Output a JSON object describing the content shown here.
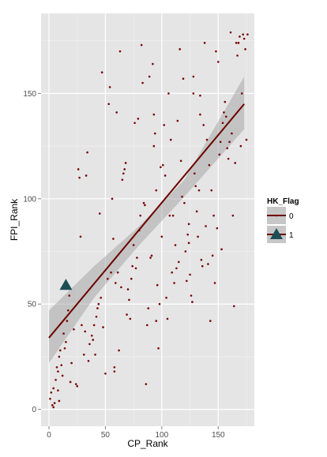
{
  "chart_data": {
    "type": "scatter",
    "xlabel": "CP_Rank",
    "ylabel": "FPI_Rank",
    "xlim": [
      -7,
      182
    ],
    "ylim": [
      -8,
      188
    ],
    "x_ticks": [
      0,
      50,
      100,
      150
    ],
    "y_ticks": [
      0,
      50,
      100,
      150
    ],
    "grid": true,
    "legend": {
      "title": "HK_Flag",
      "position": "right",
      "entries": [
        {
          "label": "0",
          "shape": "point",
          "color": "#7a0000"
        },
        {
          "label": "1",
          "shape": "triangle",
          "color": "#1e4e55"
        }
      ]
    },
    "series": [
      {
        "name": "0",
        "color": "#7a0000",
        "points": [
          [
            1,
            5
          ],
          [
            2,
            8
          ],
          [
            3,
            2
          ],
          [
            4,
            10
          ],
          [
            4,
            1
          ],
          [
            5,
            3
          ],
          [
            6,
            14
          ],
          [
            7,
            20
          ],
          [
            8,
            18
          ],
          [
            8,
            9
          ],
          [
            9,
            25
          ],
          [
            9,
            4
          ],
          [
            10,
            28
          ],
          [
            11,
            21
          ],
          [
            12,
            16
          ],
          [
            13,
            36
          ],
          [
            14,
            29
          ],
          [
            15,
            32
          ],
          [
            16,
            42
          ],
          [
            17,
            47
          ],
          [
            18,
            54
          ],
          [
            19,
            13
          ],
          [
            20,
            22
          ],
          [
            22,
            38
          ],
          [
            24,
            12
          ],
          [
            25,
            11
          ],
          [
            26,
            114
          ],
          [
            27,
            110
          ],
          [
            28,
            82
          ],
          [
            29,
            40
          ],
          [
            31,
            26
          ],
          [
            32,
            37
          ],
          [
            33,
            111
          ],
          [
            34,
            122
          ],
          [
            35,
            23
          ],
          [
            36,
            31
          ],
          [
            38,
            35
          ],
          [
            39,
            33
          ],
          [
            40,
            40
          ],
          [
            41,
            26
          ],
          [
            42,
            44
          ],
          [
            43,
            48
          ],
          [
            44,
            50
          ],
          [
            45,
            93
          ],
          [
            46,
            53
          ],
          [
            47,
            160
          ],
          [
            48,
            39
          ],
          [
            50,
            17
          ],
          [
            52,
            62
          ],
          [
            53,
            145
          ],
          [
            54,
            153
          ],
          [
            55,
            65
          ],
          [
            56,
            100
          ],
          [
            57,
            81
          ],
          [
            58,
            20
          ],
          [
            58,
            18
          ],
          [
            59,
            60
          ],
          [
            60,
            141
          ],
          [
            61,
            65
          ],
          [
            62,
            28
          ],
          [
            63,
            170
          ],
          [
            64,
            58
          ],
          [
            65,
            109
          ],
          [
            66,
            112
          ],
          [
            67,
            114
          ],
          [
            68,
            117
          ],
          [
            69,
            45
          ],
          [
            70,
            57
          ],
          [
            71,
            52
          ],
          [
            72,
            43
          ],
          [
            73,
            62
          ],
          [
            74,
            68
          ],
          [
            75,
            78
          ],
          [
            76,
            136
          ],
          [
            77,
            67
          ],
          [
            78,
            72
          ],
          [
            79,
            138
          ],
          [
            80,
            85
          ],
          [
            81,
            92
          ],
          [
            82,
            173
          ],
          [
            83,
            155
          ],
          [
            84,
            98
          ],
          [
            85,
            97
          ],
          [
            86,
            12
          ],
          [
            87,
            40
          ],
          [
            88,
            48
          ],
          [
            89,
            158
          ],
          [
            90,
            72
          ],
          [
            91,
            73
          ],
          [
            92,
            164
          ],
          [
            93,
            140
          ],
          [
            93,
            125
          ],
          [
            94,
            131
          ],
          [
            95,
            104
          ],
          [
            95,
            42
          ],
          [
            96,
            59
          ],
          [
            97,
            29
          ],
          [
            98,
            50
          ],
          [
            99,
            115
          ],
          [
            100,
            82
          ],
          [
            101,
            116
          ],
          [
            102,
            135
          ],
          [
            103,
            111
          ],
          [
            104,
            53
          ],
          [
            105,
            43
          ],
          [
            106,
            150
          ],
          [
            107,
            92
          ],
          [
            108,
            128
          ],
          [
            109,
            65
          ],
          [
            110,
            92
          ],
          [
            111,
            60
          ],
          [
            112,
            78
          ],
          [
            113,
            67
          ],
          [
            114,
            137
          ],
          [
            115,
            70
          ],
          [
            116,
            171
          ],
          [
            117,
            118
          ],
          [
            118,
            101
          ],
          [
            119,
            157
          ],
          [
            120,
            98
          ],
          [
            121,
            75
          ],
          [
            122,
            61
          ],
          [
            123,
            83
          ],
          [
            124,
            79
          ],
          [
            124,
            88
          ],
          [
            125,
            64
          ],
          [
            126,
            54
          ],
          [
            127,
            51
          ],
          [
            128,
            150
          ],
          [
            128,
            158
          ],
          [
            129,
            112
          ],
          [
            130,
            106
          ],
          [
            131,
            94
          ],
          [
            132,
            82
          ],
          [
            133,
            104
          ],
          [
            134,
            140
          ],
          [
            134,
            149
          ],
          [
            135,
            71
          ],
          [
            136,
            68
          ],
          [
            137,
            135
          ],
          [
            138,
            174
          ],
          [
            139,
            87
          ],
          [
            140,
            128
          ],
          [
            141,
            69
          ],
          [
            142,
            116
          ],
          [
            143,
            42
          ],
          [
            144,
            104
          ],
          [
            145,
            73
          ],
          [
            146,
            92
          ],
          [
            147,
            60
          ],
          [
            148,
            170
          ],
          [
            149,
            86
          ],
          [
            150,
            165
          ],
          [
            151,
            121
          ],
          [
            152,
            127
          ],
          [
            153,
            76
          ],
          [
            154,
            136
          ],
          [
            155,
            141
          ],
          [
            156,
            146
          ],
          [
            157,
            139
          ],
          [
            158,
            124
          ],
          [
            159,
            119
          ],
          [
            160,
            127
          ],
          [
            161,
            179
          ],
          [
            162,
            131
          ],
          [
            163,
            92
          ],
          [
            164,
            49
          ],
          [
            165,
            117
          ],
          [
            166,
            174
          ],
          [
            167,
            168
          ],
          [
            168,
            174
          ],
          [
            169,
            177
          ],
          [
            170,
            125
          ],
          [
            171,
            150
          ],
          [
            172,
            178
          ],
          [
            173,
            176
          ],
          [
            174,
            171
          ],
          [
            175,
            128
          ],
          [
            176,
            178
          ]
        ]
      },
      {
        "name": "1",
        "color": "#1e4e55",
        "points": [
          [
            15,
            59
          ]
        ]
      }
    ],
    "regression": {
      "line": [
        [
          0,
          34
        ],
        [
          173,
          145
        ]
      ],
      "ci_upper": [
        [
          0,
          47
        ],
        [
          40,
          68
        ],
        [
          80,
          87
        ],
        [
          120,
          109
        ],
        [
          173,
          158
        ]
      ],
      "ci_lower": [
        [
          0,
          22
        ],
        [
          40,
          53
        ],
        [
          80,
          78
        ],
        [
          120,
          101
        ],
        [
          173,
          133
        ]
      ],
      "line_color": "#6b0000",
      "ribbon_color": "#999999"
    }
  }
}
